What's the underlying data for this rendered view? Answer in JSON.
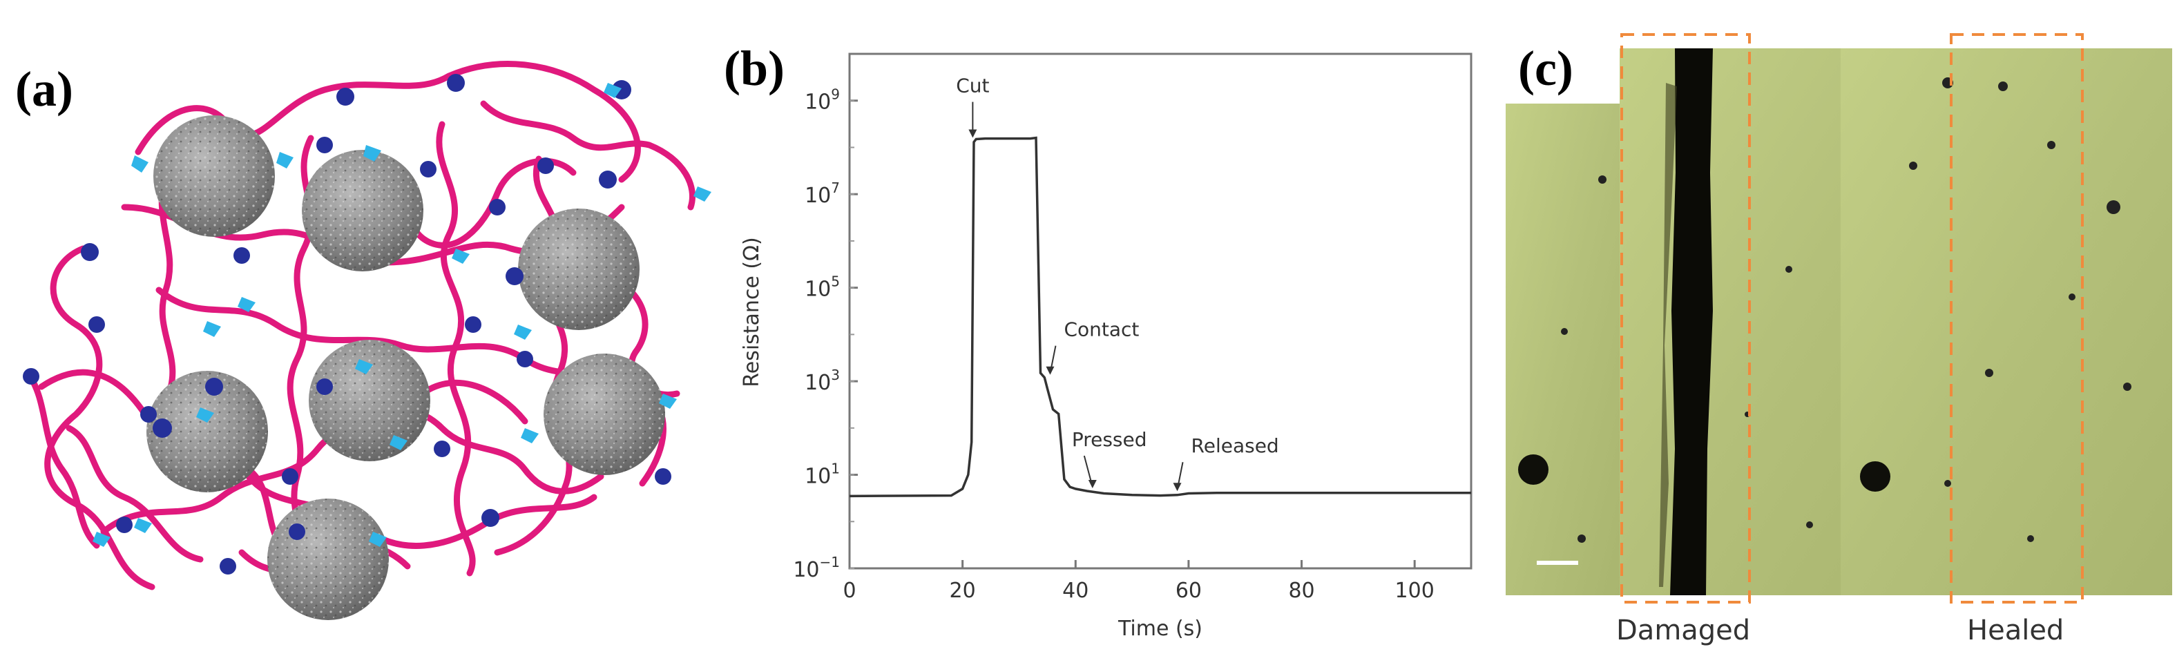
{
  "panels": {
    "a": {
      "label": "(a)"
    },
    "b": {
      "label": "(b)"
    },
    "c": {
      "label": "(c)",
      "captions": [
        "Damaged",
        "Healed"
      ]
    }
  },
  "colors": {
    "polymer_chain": "#e0197d",
    "particle": "#8c8c8c",
    "bond_light": "#2fb5e8",
    "bond_dark": "#25309a",
    "micrograph": "#b9c47e",
    "crack": "#0b0b06",
    "dash_box": "#f08a3c"
  },
  "chart_data": {
    "type": "line",
    "xlabel": "Time (s)",
    "ylabel": "Resistance (Ω)",
    "xlim": [
      0,
      110
    ],
    "ylim_log10": [
      -1,
      10
    ],
    "log_y": true,
    "x_ticks": [
      "0",
      "20",
      "40",
      "60",
      "80",
      "100"
    ],
    "y_ticks": [
      {
        "base": "10",
        "exp": "9"
      },
      {
        "base": "10",
        "exp": "7"
      },
      {
        "base": "10",
        "exp": "5"
      },
      {
        "base": "10",
        "exp": "3"
      },
      {
        "base": "10",
        "exp": "1"
      },
      {
        "base": "10",
        "exp": "−1"
      }
    ],
    "series": [
      {
        "x": [
          0,
          18,
          20,
          21,
          21.6,
          22,
          22.4,
          24,
          28,
          32,
          33,
          33.8,
          34.5,
          35,
          36,
          37,
          38,
          39,
          40,
          42,
          45,
          50,
          55,
          58,
          60,
          65,
          70,
          80,
          90,
          100,
          110
        ],
        "y": [
          3.5,
          3.6,
          5,
          10,
          50,
          130000000.0,
          150000000.0,
          155000000.0,
          155000000.0,
          155000000.0,
          160000000.0,
          1500.0,
          1200.0,
          700.0,
          250.0,
          200.0,
          8,
          5.5,
          5,
          4.5,
          4,
          3.7,
          3.6,
          3.7,
          4,
          4.1,
          4.1,
          4.1,
          4.1,
          4.1,
          4.1
        ]
      }
    ],
    "annotations": [
      {
        "text": "Cut",
        "x": 21.8,
        "y": 140000000.0
      },
      {
        "text": "Contact",
        "x": 35.5,
        "y": 1200.0
      },
      {
        "text": "Pressed",
        "x": 43,
        "y": 4.5
      },
      {
        "text": "Released",
        "x": 58,
        "y": 3.9
      }
    ],
    "grid": false
  }
}
